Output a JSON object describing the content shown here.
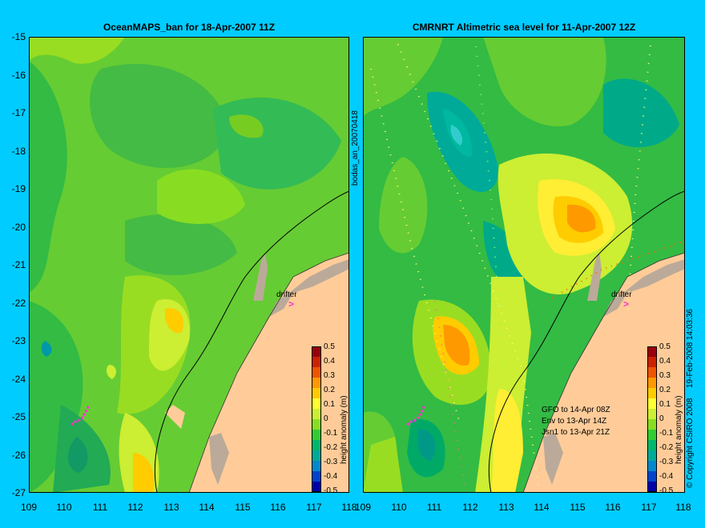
{
  "left_panel": {
    "title": "OceanMAPS_ban for 18-Apr-2007 11Z",
    "side_label": "bodas_an_20070418",
    "drifter_label": "drifter"
  },
  "right_panel": {
    "title": "CMRNRT Altimetric sea level  for 11-Apr-2007 12Z",
    "drifter_label": "drifter",
    "satellite_notes": [
      "GFO to 14-Apr 08Z",
      "Env to 13-Apr 14Z",
      "Jsn1 to 13-Apr 21Z"
    ],
    "side_label_date": "19-Feb-2008 14:03:36",
    "side_label_copyright": "© Copyright CSIRO 2008"
  },
  "axes": {
    "lat_ticks": [
      "-15",
      "-16",
      "-17",
      "-18",
      "-19",
      "-20",
      "-21",
      "-22",
      "-23",
      "-24",
      "-25",
      "-26",
      "-27"
    ],
    "lon_ticks": [
      "109",
      "110",
      "111",
      "112",
      "113",
      "114",
      "115",
      "116",
      "117",
      "118"
    ]
  },
  "colorbar": {
    "label": "height anomaly (m)",
    "ticks": [
      "0.5",
      "0.4",
      "0.3",
      "0.2",
      "0.1",
      "0",
      "-0.1",
      "-0.2",
      "-0.3",
      "-0.4",
      "-0.5"
    ],
    "colors": [
      "#99000d",
      "#cc2200",
      "#ee5500",
      "#ff9900",
      "#ffcc00",
      "#ffff33",
      "#ccee33",
      "#88dd22",
      "#33cc33",
      "#00b86b",
      "#00aa99",
      "#0088cc",
      "#0044cc",
      "#0000aa"
    ]
  },
  "colors": {
    "background": "#00ccff",
    "land": "#ffcc99",
    "reef": "#bbaa99",
    "drifter": "#ff33cc",
    "coastline": "#000000"
  }
}
